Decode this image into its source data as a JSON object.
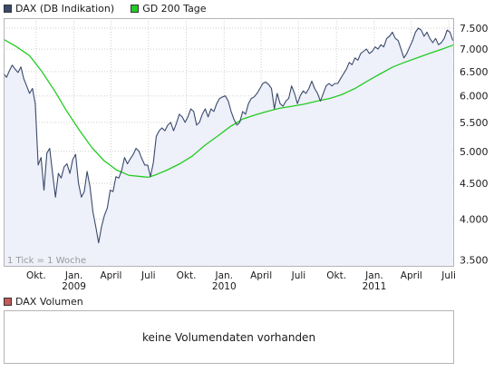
{
  "legend": {
    "dax_label": "DAX (DB Indikation)",
    "gd_label": "GD 200 Tage",
    "dax_color": "#3a4a6b",
    "gd_color": "#22cc22"
  },
  "volume": {
    "label": "DAX Volumen",
    "color": "#c45a5a",
    "message": "keine Volumendaten vorhanden"
  },
  "chart_data": {
    "type": "line",
    "title": "",
    "tick_note": "1 Tick = 1 Woche",
    "x_ticks": [
      {
        "date": "2008-10-01",
        "label": "Okt.",
        "sub": ""
      },
      {
        "date": "2009-01-01",
        "label": "Jan.",
        "sub": "2009"
      },
      {
        "date": "2009-04-01",
        "label": "April",
        "sub": ""
      },
      {
        "date": "2009-07-01",
        "label": "Juli",
        "sub": ""
      },
      {
        "date": "2009-10-01",
        "label": "Okt.",
        "sub": ""
      },
      {
        "date": "2010-01-01",
        "label": "Jan.",
        "sub": "2010"
      },
      {
        "date": "2010-04-01",
        "label": "April",
        "sub": ""
      },
      {
        "date": "2010-07-01",
        "label": "Juli",
        "sub": ""
      },
      {
        "date": "2010-10-01",
        "label": "Okt.",
        "sub": ""
      },
      {
        "date": "2011-01-01",
        "label": "Jan.",
        "sub": "2011"
      },
      {
        "date": "2011-04-01",
        "label": "April",
        "sub": ""
      },
      {
        "date": "2011-07-01",
        "label": "Juli",
        "sub": ""
      }
    ],
    "y_ticks": [
      3500,
      4000,
      4500,
      5000,
      5500,
      6000,
      6500,
      7000,
      7500
    ],
    "y_tick_labels": [
      "3.500",
      "4.000",
      "4.500",
      "5.000",
      "5.500",
      "6.000",
      "6.500",
      "7.000",
      "7.500"
    ],
    "y_scale": "log",
    "ylim": [
      3420,
      7750
    ],
    "xlim": [
      "2008-07-14",
      "2011-07-14"
    ],
    "grid": true,
    "series": [
      {
        "name": "DAX (DB Indikation)",
        "color": "#3a4a6b",
        "fill": "#eef0fa",
        "points": [
          [
            "2008-07-14",
            6460
          ],
          [
            "2008-07-21",
            6380
          ],
          [
            "2008-07-28",
            6520
          ],
          [
            "2008-08-04",
            6640
          ],
          [
            "2008-08-11",
            6550
          ],
          [
            "2008-08-18",
            6480
          ],
          [
            "2008-08-25",
            6600
          ],
          [
            "2008-09-01",
            6350
          ],
          [
            "2008-09-08",
            6200
          ],
          [
            "2008-09-15",
            6050
          ],
          [
            "2008-09-22",
            6150
          ],
          [
            "2008-09-29",
            5850
          ],
          [
            "2008-10-06",
            4780
          ],
          [
            "2008-10-13",
            4900
          ],
          [
            "2008-10-20",
            4400
          ],
          [
            "2008-10-27",
            4970
          ],
          [
            "2008-11-03",
            5050
          ],
          [
            "2008-11-10",
            4650
          ],
          [
            "2008-11-17",
            4300
          ],
          [
            "2008-11-24",
            4650
          ],
          [
            "2008-12-01",
            4580
          ],
          [
            "2008-12-08",
            4750
          ],
          [
            "2008-12-15",
            4800
          ],
          [
            "2008-12-22",
            4650
          ],
          [
            "2008-12-29",
            4870
          ],
          [
            "2009-01-05",
            4950
          ],
          [
            "2009-01-12",
            4500
          ],
          [
            "2009-01-19",
            4300
          ],
          [
            "2009-01-26",
            4380
          ],
          [
            "2009-02-02",
            4680
          ],
          [
            "2009-02-09",
            4450
          ],
          [
            "2009-02-16",
            4100
          ],
          [
            "2009-02-23",
            3900
          ],
          [
            "2009-03-02",
            3700
          ],
          [
            "2009-03-09",
            3900
          ],
          [
            "2009-03-16",
            4050
          ],
          [
            "2009-03-23",
            4150
          ],
          [
            "2009-03-30",
            4400
          ],
          [
            "2009-04-06",
            4380
          ],
          [
            "2009-04-13",
            4600
          ],
          [
            "2009-04-20",
            4580
          ],
          [
            "2009-04-27",
            4700
          ],
          [
            "2009-05-04",
            4900
          ],
          [
            "2009-05-11",
            4800
          ],
          [
            "2009-05-18",
            4880
          ],
          [
            "2009-05-25",
            4950
          ],
          [
            "2009-06-01",
            5050
          ],
          [
            "2009-06-08",
            5000
          ],
          [
            "2009-06-15",
            4880
          ],
          [
            "2009-06-22",
            4780
          ],
          [
            "2009-06-29",
            4780
          ],
          [
            "2009-07-06",
            4600
          ],
          [
            "2009-07-13",
            4820
          ],
          [
            "2009-07-20",
            5250
          ],
          [
            "2009-07-27",
            5350
          ],
          [
            "2009-08-03",
            5400
          ],
          [
            "2009-08-10",
            5350
          ],
          [
            "2009-08-17",
            5450
          ],
          [
            "2009-08-24",
            5500
          ],
          [
            "2009-08-31",
            5350
          ],
          [
            "2009-09-07",
            5480
          ],
          [
            "2009-09-14",
            5650
          ],
          [
            "2009-09-21",
            5600
          ],
          [
            "2009-09-28",
            5500
          ],
          [
            "2009-10-05",
            5600
          ],
          [
            "2009-10-12",
            5750
          ],
          [
            "2009-10-19",
            5700
          ],
          [
            "2009-10-26",
            5450
          ],
          [
            "2009-11-02",
            5500
          ],
          [
            "2009-11-09",
            5650
          ],
          [
            "2009-11-16",
            5750
          ],
          [
            "2009-11-23",
            5600
          ],
          [
            "2009-11-30",
            5750
          ],
          [
            "2009-12-07",
            5700
          ],
          [
            "2009-12-14",
            5850
          ],
          [
            "2009-12-21",
            5950
          ],
          [
            "2009-12-28",
            5980
          ],
          [
            "2010-01-04",
            6000
          ],
          [
            "2010-01-11",
            5900
          ],
          [
            "2010-01-18",
            5700
          ],
          [
            "2010-01-25",
            5550
          ],
          [
            "2010-02-01",
            5450
          ],
          [
            "2010-02-08",
            5500
          ],
          [
            "2010-02-15",
            5700
          ],
          [
            "2010-02-22",
            5650
          ],
          [
            "2010-03-01",
            5850
          ],
          [
            "2010-03-08",
            5950
          ],
          [
            "2010-03-15",
            5980
          ],
          [
            "2010-03-22",
            6050
          ],
          [
            "2010-03-29",
            6150
          ],
          [
            "2010-04-05",
            6250
          ],
          [
            "2010-04-12",
            6280
          ],
          [
            "2010-04-19",
            6230
          ],
          [
            "2010-04-26",
            6150
          ],
          [
            "2010-05-03",
            5750
          ],
          [
            "2010-05-10",
            6050
          ],
          [
            "2010-05-17",
            5850
          ],
          [
            "2010-05-24",
            5800
          ],
          [
            "2010-05-31",
            5900
          ],
          [
            "2010-06-07",
            5950
          ],
          [
            "2010-06-14",
            6200
          ],
          [
            "2010-06-21",
            6050
          ],
          [
            "2010-06-28",
            5850
          ],
          [
            "2010-07-05",
            6000
          ],
          [
            "2010-07-12",
            6100
          ],
          [
            "2010-07-19",
            6050
          ],
          [
            "2010-07-26",
            6150
          ],
          [
            "2010-08-02",
            6300
          ],
          [
            "2010-08-09",
            6150
          ],
          [
            "2010-08-16",
            6050
          ],
          [
            "2010-08-23",
            5900
          ],
          [
            "2010-08-30",
            6050
          ],
          [
            "2010-09-06",
            6200
          ],
          [
            "2010-09-13",
            6250
          ],
          [
            "2010-09-20",
            6200
          ],
          [
            "2010-09-27",
            6250
          ],
          [
            "2010-10-04",
            6250
          ],
          [
            "2010-10-11",
            6350
          ],
          [
            "2010-10-18",
            6450
          ],
          [
            "2010-10-25",
            6550
          ],
          [
            "2010-11-01",
            6700
          ],
          [
            "2010-11-08",
            6650
          ],
          [
            "2010-11-15",
            6800
          ],
          [
            "2010-11-22",
            6750
          ],
          [
            "2010-11-29",
            6900
          ],
          [
            "2010-12-06",
            6950
          ],
          [
            "2010-12-13",
            7000
          ],
          [
            "2010-12-20",
            6900
          ],
          [
            "2010-12-27",
            6950
          ],
          [
            "2011-01-03",
            7050
          ],
          [
            "2011-01-10",
            7000
          ],
          [
            "2011-01-17",
            7100
          ],
          [
            "2011-01-24",
            7050
          ],
          [
            "2011-01-31",
            7250
          ],
          [
            "2011-02-07",
            7300
          ],
          [
            "2011-02-14",
            7400
          ],
          [
            "2011-02-21",
            7250
          ],
          [
            "2011-02-28",
            7200
          ],
          [
            "2011-03-07",
            7000
          ],
          [
            "2011-03-14",
            6800
          ],
          [
            "2011-03-21",
            6900
          ],
          [
            "2011-03-28",
            7050
          ],
          [
            "2011-04-04",
            7200
          ],
          [
            "2011-04-11",
            7400
          ],
          [
            "2011-04-18",
            7500
          ],
          [
            "2011-04-25",
            7450
          ],
          [
            "2011-05-02",
            7300
          ],
          [
            "2011-05-09",
            7400
          ],
          [
            "2011-05-16",
            7250
          ],
          [
            "2011-05-23",
            7150
          ],
          [
            "2011-05-30",
            7250
          ],
          [
            "2011-06-06",
            7100
          ],
          [
            "2011-06-13",
            7150
          ],
          [
            "2011-06-20",
            7250
          ],
          [
            "2011-06-27",
            7450
          ],
          [
            "2011-07-04",
            7400
          ],
          [
            "2011-07-11",
            7200
          ]
        ]
      },
      {
        "name": "GD 200 Tage",
        "color": "#22cc22",
        "points": [
          [
            "2008-07-14",
            7230
          ],
          [
            "2008-08-15",
            7050
          ],
          [
            "2008-09-15",
            6850
          ],
          [
            "2008-10-15",
            6500
          ],
          [
            "2008-11-15",
            6100
          ],
          [
            "2008-12-15",
            5700
          ],
          [
            "2009-01-15",
            5350
          ],
          [
            "2009-02-15",
            5050
          ],
          [
            "2009-03-15",
            4850
          ],
          [
            "2009-04-15",
            4700
          ],
          [
            "2009-05-15",
            4620
          ],
          [
            "2009-06-15",
            4600
          ],
          [
            "2009-07-01",
            4590
          ],
          [
            "2009-07-15",
            4620
          ],
          [
            "2009-08-15",
            4700
          ],
          [
            "2009-09-15",
            4800
          ],
          [
            "2009-10-15",
            4920
          ],
          [
            "2009-11-15",
            5100
          ],
          [
            "2009-12-15",
            5250
          ],
          [
            "2010-01-15",
            5420
          ],
          [
            "2010-02-15",
            5560
          ],
          [
            "2010-03-15",
            5630
          ],
          [
            "2010-04-15",
            5700
          ],
          [
            "2010-05-15",
            5760
          ],
          [
            "2010-06-15",
            5800
          ],
          [
            "2010-07-15",
            5840
          ],
          [
            "2010-08-15",
            5900
          ],
          [
            "2010-09-15",
            5950
          ],
          [
            "2010-10-15",
            6030
          ],
          [
            "2010-11-15",
            6150
          ],
          [
            "2010-12-15",
            6300
          ],
          [
            "2011-01-15",
            6450
          ],
          [
            "2011-02-15",
            6600
          ],
          [
            "2011-03-15",
            6700
          ],
          [
            "2011-04-15",
            6800
          ],
          [
            "2011-05-15",
            6900
          ],
          [
            "2011-06-15",
            7000
          ],
          [
            "2011-07-14",
            7100
          ]
        ]
      }
    ]
  }
}
